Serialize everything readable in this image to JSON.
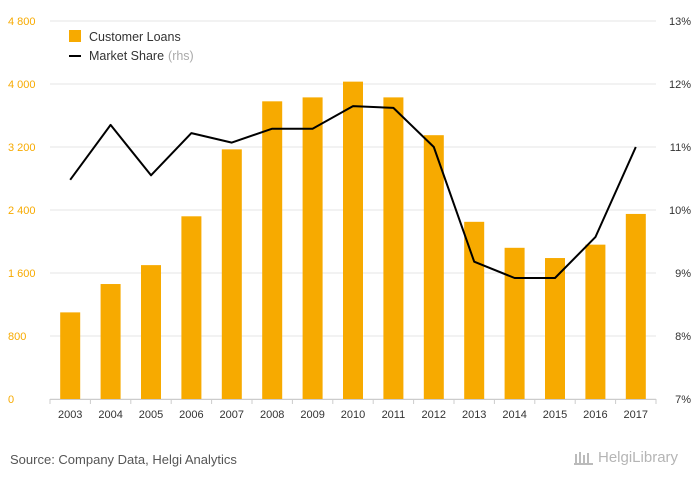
{
  "colors": {
    "bar": "#f7aa00",
    "line": "#000000",
    "left_axis_text": "#f7aa00",
    "right_axis_text": "#333333",
    "grid": "#e6e6e6"
  },
  "chart_data": {
    "type": "bar",
    "categories": [
      "2003",
      "2004",
      "2005",
      "2006",
      "2007",
      "2008",
      "2009",
      "2010",
      "2011",
      "2012",
      "2013",
      "2014",
      "2015",
      "2016",
      "2017"
    ],
    "series": [
      {
        "name": "Customer Loans",
        "type": "bar",
        "axis": "left",
        "values": [
          1100,
          1460,
          1700,
          2320,
          3170,
          3780,
          3830,
          4030,
          3830,
          3350,
          2250,
          1920,
          1790,
          1960,
          2350
        ]
      },
      {
        "name": "Market Share",
        "name_suffix": "(rhs)",
        "type": "line",
        "axis": "right",
        "values": [
          10.48,
          11.35,
          10.55,
          11.22,
          11.07,
          11.29,
          11.29,
          11.65,
          11.62,
          11.0,
          9.18,
          8.92,
          8.92,
          9.57,
          11.0
        ]
      }
    ],
    "y_left": {
      "min": 0,
      "max": 4800,
      "ticks": [
        "0",
        "800",
        "1 600",
        "2 400",
        "3 200",
        "4 000",
        "4 800"
      ]
    },
    "y_right": {
      "min": 7,
      "max": 13,
      "ticks": [
        "7%",
        "8%",
        "9%",
        "10%",
        "11%",
        "12%",
        "13%"
      ]
    },
    "legend_position": "top-left",
    "grid": true
  },
  "footer": {
    "source": "Source: Company Data, Helgi Analytics",
    "logo_text": "HelgiLibrary"
  }
}
